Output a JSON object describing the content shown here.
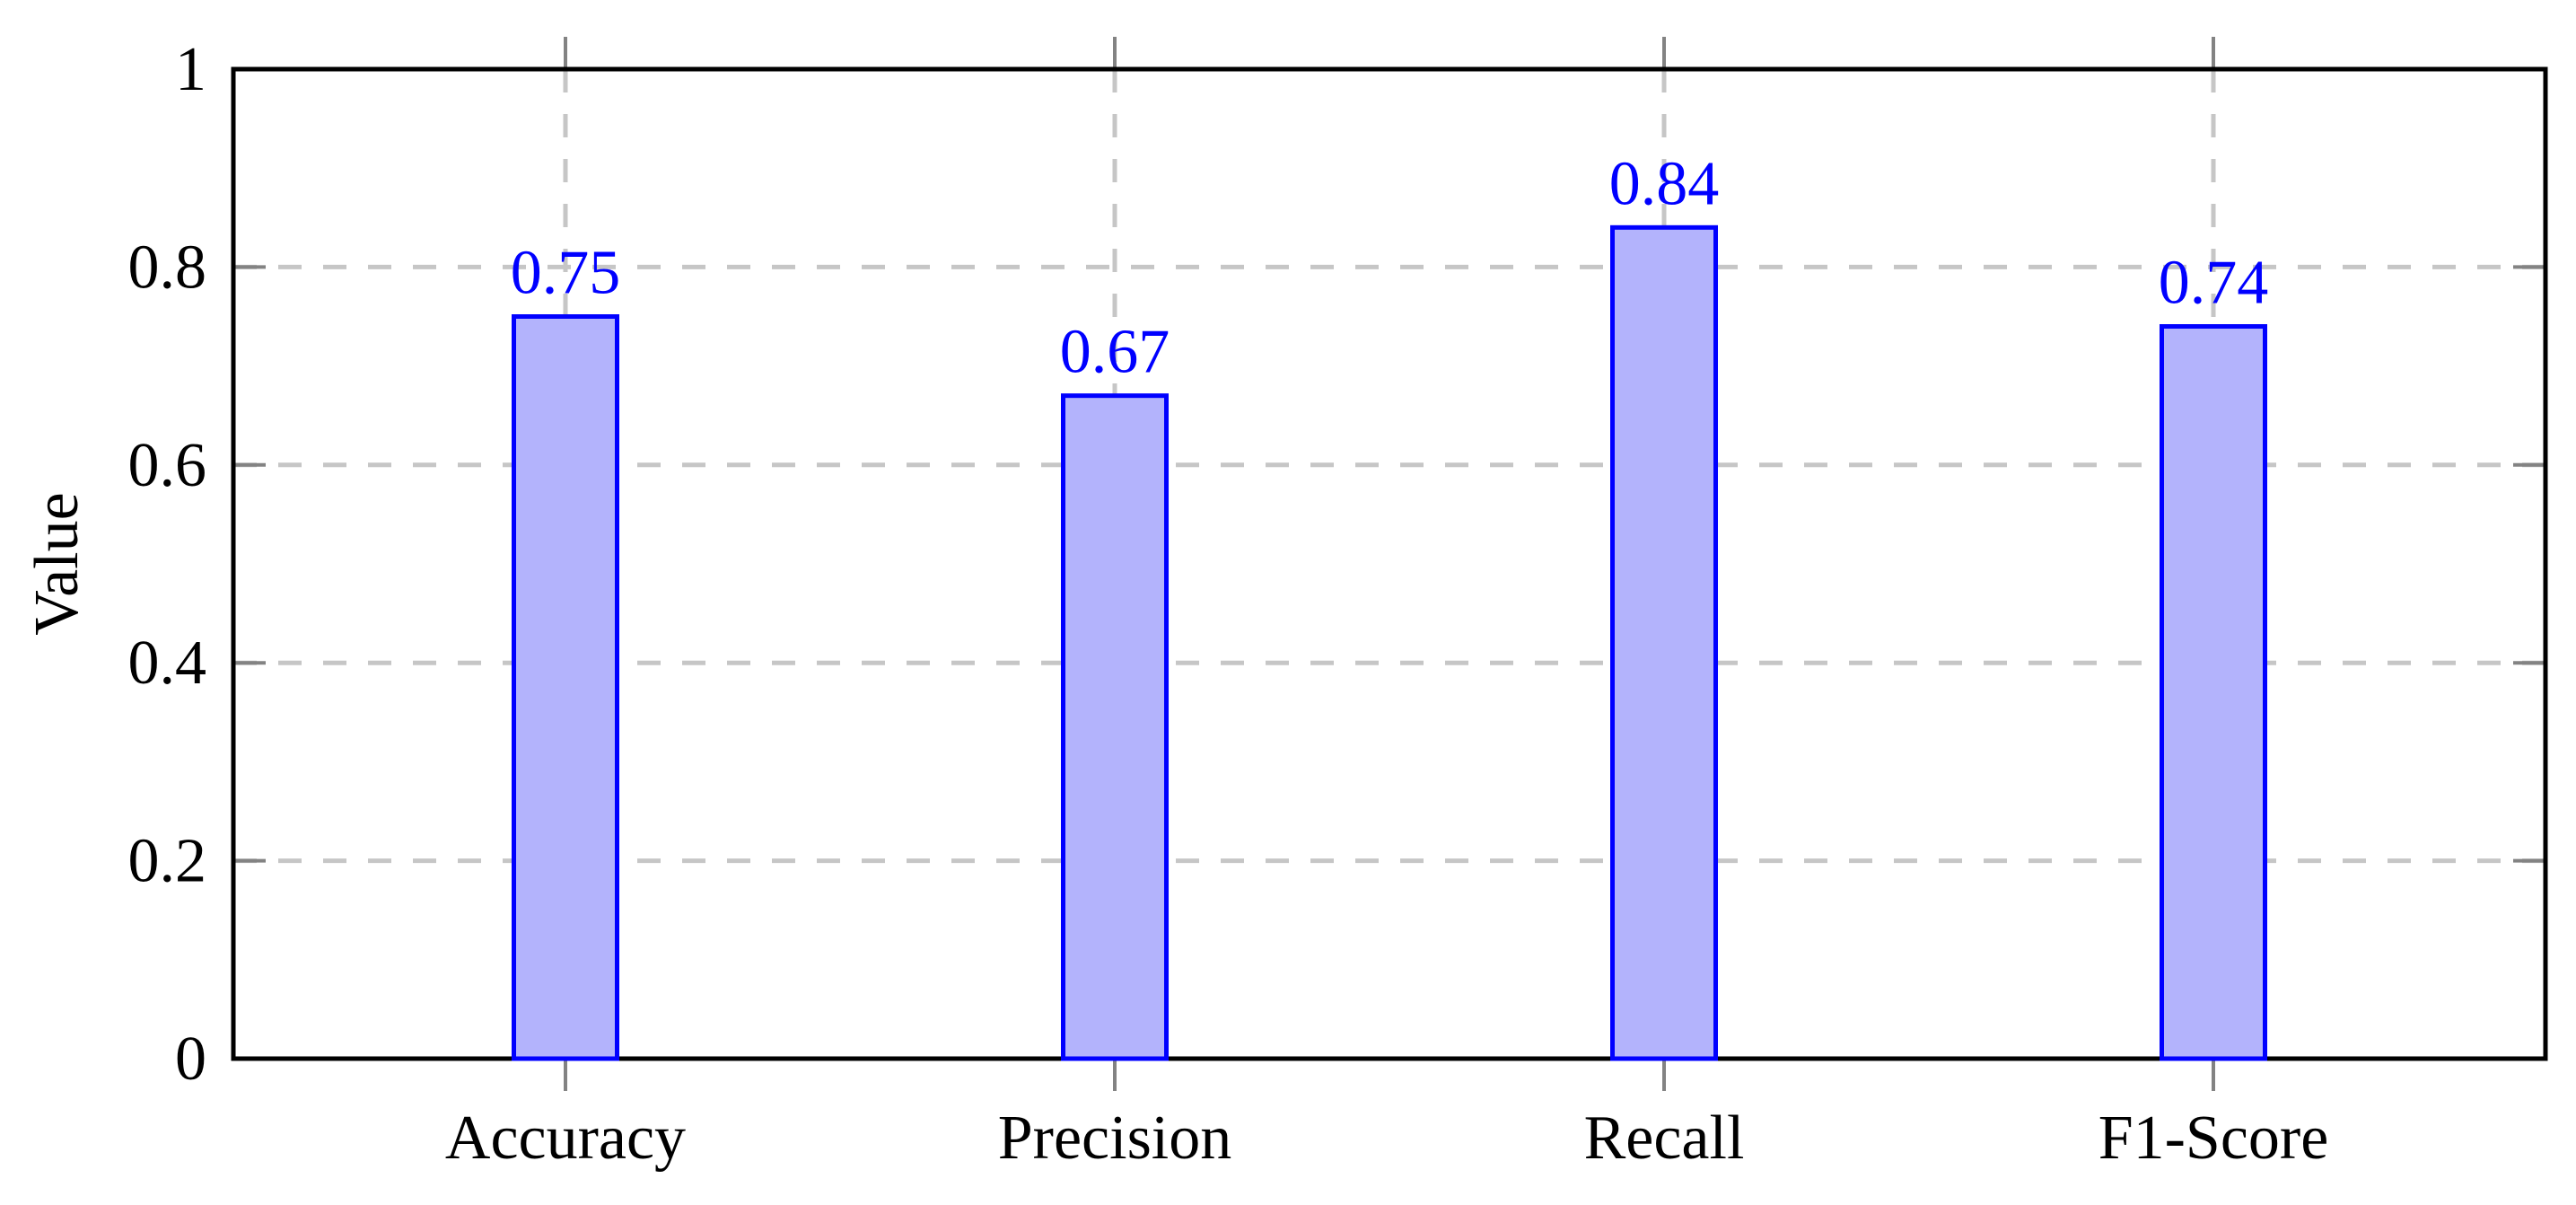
{
  "chart_data": {
    "type": "bar",
    "title": "",
    "xlabel": "",
    "ylabel": "Value",
    "categories": [
      "Accuracy",
      "Precision",
      "Recall",
      "F1-Score"
    ],
    "values": [
      0.75,
      0.67,
      0.84,
      0.74
    ],
    "bar_labels": [
      "0.75",
      "0.67",
      "0.84",
      "0.74"
    ],
    "ylim": [
      0,
      1
    ],
    "yticks": [
      0,
      0.2,
      0.4,
      0.6,
      0.8,
      1
    ],
    "ytick_labels": [
      "0",
      "0.2",
      "0.4",
      "0.6",
      "0.8",
      "1"
    ],
    "grid": {
      "style": "dashed",
      "horizontal_at": [
        0.2,
        0.4,
        0.6,
        0.8
      ],
      "vertical_at_category_centers": true
    },
    "legend_position": "none",
    "colors": {
      "bar_fill": "#b3b3fc",
      "bar_border": "#0000ff",
      "value_label": "#0000ff",
      "grid": "#c6c6c6",
      "tick": "#838383",
      "axis_frame": "#000000",
      "text": "#000000",
      "background": "#ffffff"
    }
  }
}
